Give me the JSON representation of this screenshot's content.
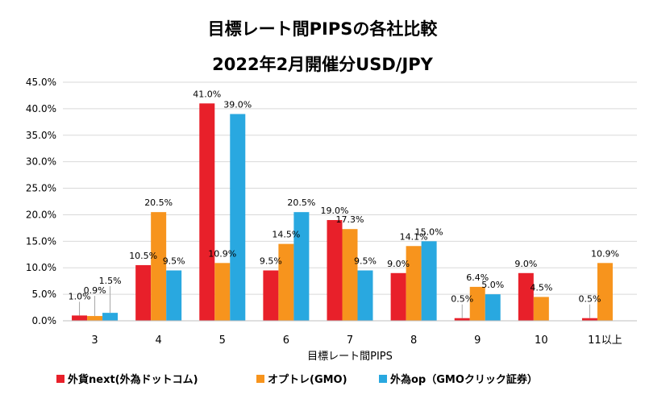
{
  "chart_data": {
    "type": "bar",
    "title": [
      "目標レート間PIPSの各社比較",
      "2022年2月開催分USD/JPY"
    ],
    "xlabel": "目標レート間PIPS",
    "ylabel": "",
    "ylim": [
      0,
      45
    ],
    "ytick_step": 5,
    "ytick_labels": [
      "0.0%",
      "5.0%",
      "10.0%",
      "15.0%",
      "20.0%",
      "25.0%",
      "30.0%",
      "35.0%",
      "40.0%",
      "45.0%"
    ],
    "categories": [
      "3",
      "4",
      "5",
      "6",
      "7",
      "8",
      "9",
      "10",
      "11以上"
    ],
    "grid": true,
    "legend_position": "bottom",
    "series": [
      {
        "name": "外貨next(外為ドットコム)",
        "color": "#e8202a",
        "values": [
          1.0,
          10.5,
          41.0,
          9.5,
          19.0,
          9.0,
          0.5,
          9.0,
          0.5
        ],
        "labels": [
          "1.0%",
          "10.5%",
          "41.0%",
          "9.5%",
          "19.0%",
          "9.0%",
          "0.5%",
          "9.0%",
          "0.5%"
        ]
      },
      {
        "name": "オプトレ(GMO)",
        "color": "#f7941d",
        "values": [
          0.9,
          20.5,
          10.9,
          14.5,
          17.3,
          14.1,
          6.4,
          4.5,
          10.9
        ],
        "labels": [
          "0.9%",
          "20.5%",
          "10.9%",
          "14.5%",
          "17.3%",
          "14.1%",
          "6.4%",
          "4.5%",
          "10.9%"
        ]
      },
      {
        "name": "外為op（GMOクリック証券）",
        "color": "#29a8e0",
        "values": [
          1.5,
          9.5,
          39.0,
          20.5,
          9.5,
          15.0,
          5.0,
          null,
          null
        ],
        "labels": [
          "1.5%",
          "9.5%",
          "39.0%",
          "20.5%",
          "9.5%",
          "15.0%",
          "5.0%",
          null,
          null
        ]
      }
    ]
  }
}
